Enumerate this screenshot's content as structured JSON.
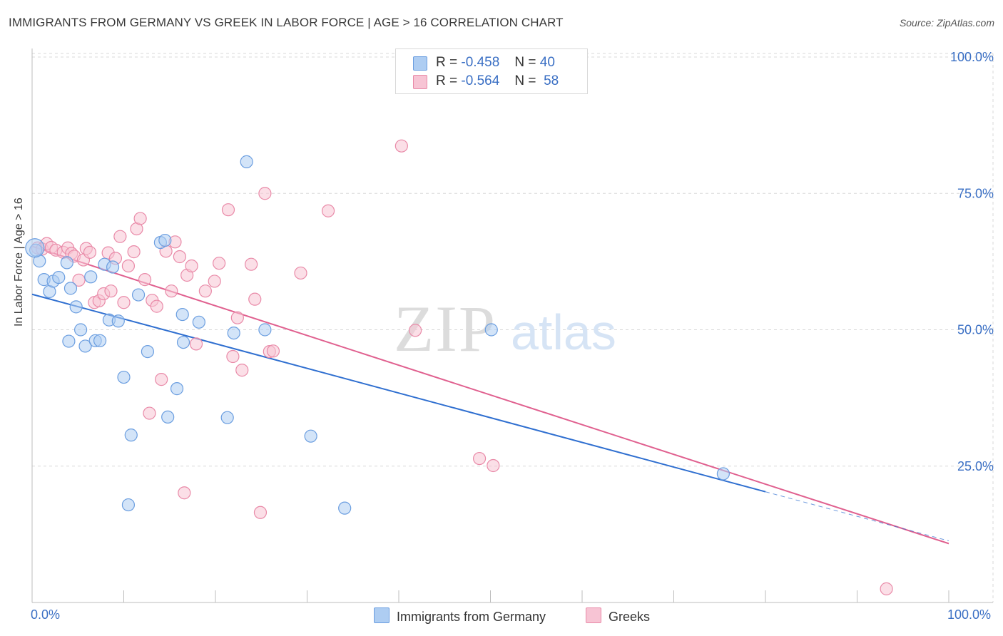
{
  "header": {
    "title": "IMMIGRANTS FROM GERMANY VS GREEK IN LABOR FORCE | AGE > 16 CORRELATION CHART",
    "source": "Source: ZipAtlas.com"
  },
  "legend": {
    "series": [
      {
        "r_label": "R =",
        "r_value": "-0.458",
        "n_label": "N =",
        "n_value": "40"
      },
      {
        "r_label": "R =",
        "r_value": "-0.564",
        "n_label": "N =",
        "n_value": "58"
      }
    ]
  },
  "watermark": {
    "zip": "ZIP",
    "atlas": "atlas"
  },
  "colors": {
    "germany_fill": "#aecdf2",
    "germany_stroke": "#6b9ee0",
    "germany_line": "#2f6fd0",
    "greeks_fill": "#f7c4d4",
    "greeks_stroke": "#e98aa8",
    "greeks_line": "#e0608f",
    "axis_label": "#3a6fc4",
    "grid": "#d8d8d8"
  },
  "chart_data": {
    "type": "scatter",
    "title": "IMMIGRANTS FROM GERMANY VS GREEK IN LABOR FORCE | AGE > 16 CORRELATION CHART",
    "xlabel": "",
    "ylabel": "In Labor Force | Age > 16",
    "xlim": [
      0,
      100
    ],
    "ylim": [
      0,
      100
    ],
    "x_tick_labels": [
      "0.0%",
      "100.0%"
    ],
    "y_ticks": [
      25,
      50,
      75,
      100
    ],
    "y_tick_labels": [
      "25.0%",
      "50.0%",
      "75.0%",
      "100.0%"
    ],
    "grid": true,
    "series": [
      {
        "name": "Immigrants from Germany",
        "r": -0.458,
        "n": 40,
        "trend": {
          "x0": 0,
          "y0": 56.5,
          "x1": 80,
          "y1": 20.3
        },
        "trend_dashed": {
          "x0": 80,
          "y0": 20.3,
          "x1": 100,
          "y1": 11.3
        },
        "points": [
          [
            0.4,
            64.6
          ],
          [
            0.8,
            62.6
          ],
          [
            1.3,
            59.2
          ],
          [
            1.9,
            57.0
          ],
          [
            2.3,
            58.9
          ],
          [
            2.9,
            59.6
          ],
          [
            3.8,
            62.3
          ],
          [
            4.2,
            57.6
          ],
          [
            4.8,
            54.2
          ],
          [
            5.3,
            50.0
          ],
          [
            5.8,
            47.0
          ],
          [
            4.0,
            47.9
          ],
          [
            6.4,
            59.7
          ],
          [
            6.9,
            48.0
          ],
          [
            7.4,
            48.0
          ],
          [
            7.9,
            62.0
          ],
          [
            8.4,
            51.8
          ],
          [
            8.8,
            61.5
          ],
          [
            9.4,
            51.6
          ],
          [
            10.0,
            41.3
          ],
          [
            10.5,
            17.9
          ],
          [
            10.8,
            30.7
          ],
          [
            11.6,
            56.4
          ],
          [
            12.6,
            46.0
          ],
          [
            14.0,
            66.0
          ],
          [
            14.5,
            66.4
          ],
          [
            14.8,
            34.0
          ],
          [
            15.8,
            39.2
          ],
          [
            16.4,
            52.8
          ],
          [
            16.5,
            47.7
          ],
          [
            18.2,
            51.4
          ],
          [
            21.3,
            33.9
          ],
          [
            22.0,
            49.4
          ],
          [
            23.4,
            80.8
          ],
          [
            25.4,
            50.0
          ],
          [
            30.4,
            30.5
          ],
          [
            34.1,
            17.3
          ],
          [
            50.1,
            50.0
          ],
          [
            75.4,
            23.6
          ],
          [
            0.3,
            65.0
          ]
        ]
      },
      {
        "name": "Greeks",
        "r": -0.564,
        "n": 58,
        "trend": {
          "x0": 0,
          "y0": 65.3,
          "x1": 100,
          "y1": 10.8
        },
        "points": [
          [
            0.6,
            65.0
          ],
          [
            1.1,
            64.8
          ],
          [
            1.6,
            65.8
          ],
          [
            2.1,
            65.1
          ],
          [
            2.6,
            64.6
          ],
          [
            3.4,
            64.2
          ],
          [
            3.9,
            65.0
          ],
          [
            4.3,
            64.0
          ],
          [
            4.6,
            63.5
          ],
          [
            5.1,
            59.1
          ],
          [
            5.6,
            62.8
          ],
          [
            5.9,
            64.9
          ],
          [
            6.3,
            64.2
          ],
          [
            6.8,
            55.0
          ],
          [
            7.3,
            55.3
          ],
          [
            7.8,
            56.6
          ],
          [
            8.3,
            64.1
          ],
          [
            8.6,
            57.1
          ],
          [
            9.1,
            63.1
          ],
          [
            9.6,
            67.1
          ],
          [
            10.0,
            55.0
          ],
          [
            10.5,
            61.7
          ],
          [
            11.1,
            64.3
          ],
          [
            11.4,
            68.5
          ],
          [
            11.8,
            70.4
          ],
          [
            12.3,
            59.2
          ],
          [
            12.8,
            34.7
          ],
          [
            13.1,
            55.4
          ],
          [
            13.6,
            54.3
          ],
          [
            14.1,
            40.9
          ],
          [
            14.6,
            64.4
          ],
          [
            15.2,
            57.1
          ],
          [
            15.6,
            66.1
          ],
          [
            16.1,
            63.4
          ],
          [
            16.6,
            20.1
          ],
          [
            16.9,
            60.0
          ],
          [
            17.4,
            61.7
          ],
          [
            17.9,
            47.4
          ],
          [
            18.9,
            57.1
          ],
          [
            19.9,
            58.9
          ],
          [
            20.4,
            62.2
          ],
          [
            21.4,
            72.0
          ],
          [
            21.9,
            45.1
          ],
          [
            22.4,
            52.2
          ],
          [
            22.9,
            42.6
          ],
          [
            23.9,
            62.0
          ],
          [
            24.3,
            55.6
          ],
          [
            24.9,
            16.5
          ],
          [
            25.4,
            75.0
          ],
          [
            25.9,
            46.0
          ],
          [
            26.3,
            46.1
          ],
          [
            29.3,
            60.4
          ],
          [
            32.3,
            71.8
          ],
          [
            40.3,
            83.7
          ],
          [
            41.8,
            49.9
          ],
          [
            48.8,
            26.4
          ],
          [
            50.3,
            25.1
          ],
          [
            93.2,
            2.5
          ]
        ]
      }
    ]
  },
  "bottom_legend": {
    "germany": "Immigrants from Germany",
    "greeks": "Greeks"
  }
}
